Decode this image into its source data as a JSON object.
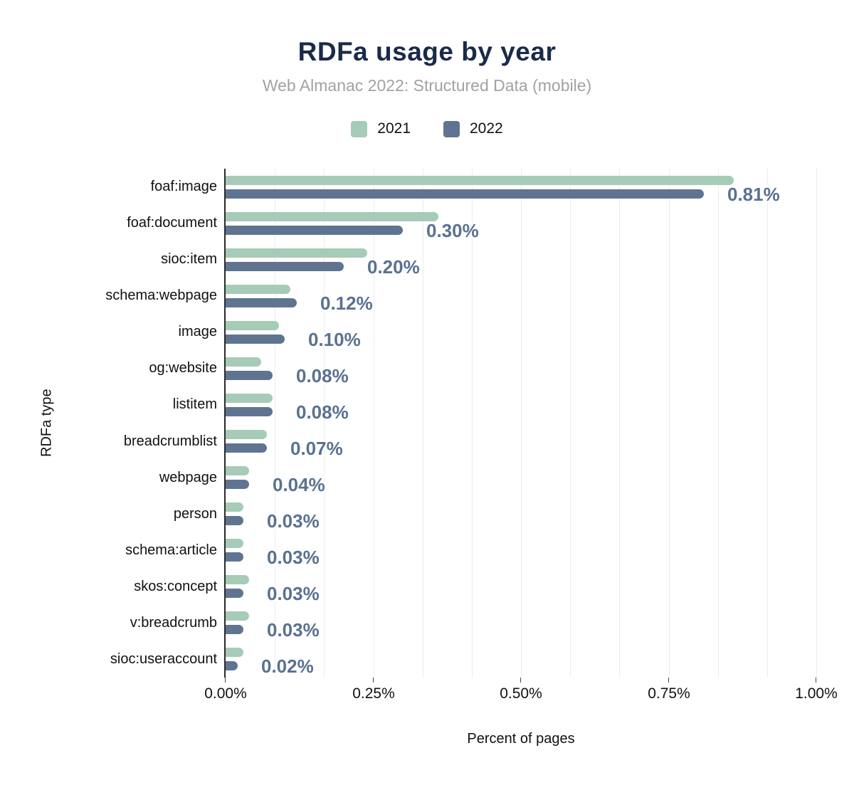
{
  "header": {
    "title": "RDFa usage by year",
    "subtitle": "Web Almanac 2022: Structured Data (mobile)"
  },
  "legend": {
    "items": [
      {
        "label": "2021",
        "color": "#a6cbb7"
      },
      {
        "label": "2022",
        "color": "#5f7490"
      }
    ]
  },
  "chart_data": {
    "type": "bar",
    "orientation": "horizontal",
    "title": "RDFa usage by year",
    "subtitle": "Web Almanac 2022: Structured Data (mobile)",
    "xlabel": "Percent of pages",
    "ylabel": "RDFa type",
    "xlim": [
      0,
      1.0
    ],
    "x_ticks": [
      "0.00%",
      "0.25%",
      "0.50%",
      "0.75%",
      "1.00%"
    ],
    "x_tick_values": [
      0,
      0.25,
      0.5,
      0.75,
      1.0
    ],
    "x_gridline_count": 12,
    "grid": "vertical minor gridlines, light gray",
    "legend_position": "top",
    "categories": [
      "foaf:image",
      "foaf:document",
      "sioc:item",
      "schema:webpage",
      "image",
      "og:website",
      "listitem",
      "breadcrumblist",
      "webpage",
      "person",
      "schema:article",
      "skos:concept",
      "v:breadcrumb",
      "sioc:useraccount"
    ],
    "series": [
      {
        "name": "2021",
        "color": "#a6cbb7",
        "values": [
          0.86,
          0.36,
          0.24,
          0.11,
          0.09,
          0.06,
          0.08,
          0.07,
          0.04,
          0.03,
          0.03,
          0.04,
          0.04,
          0.03
        ]
      },
      {
        "name": "2022",
        "color": "#5f7490",
        "values": [
          0.81,
          0.3,
          0.2,
          0.12,
          0.1,
          0.08,
          0.08,
          0.07,
          0.04,
          0.03,
          0.03,
          0.03,
          0.03,
          0.02
        ],
        "data_labels": [
          "0.81%",
          "0.30%",
          "0.20%",
          "0.12%",
          "0.10%",
          "0.08%",
          "0.08%",
          "0.07%",
          "0.04%",
          "0.03%",
          "0.03%",
          "0.03%",
          "0.03%",
          "0.02%"
        ]
      }
    ]
  }
}
